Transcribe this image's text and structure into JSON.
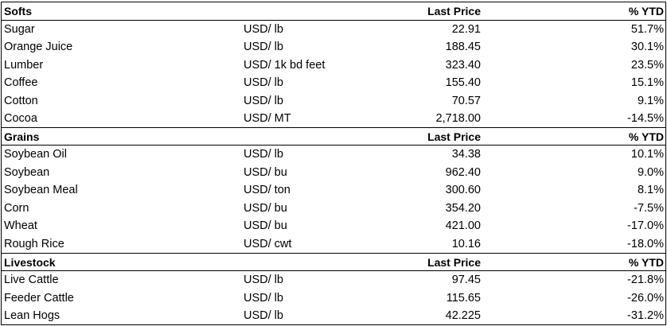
{
  "sections": [
    {
      "title": "Softs",
      "price_header": "Last Price",
      "ytd_header": "% YTD",
      "rows": [
        {
          "name": "Sugar",
          "unit": "USD/ lb",
          "price": "22.91",
          "ytd": "51.7%"
        },
        {
          "name": "Orange Juice",
          "unit": "USD/ lb",
          "price": "188.45",
          "ytd": "30.1%"
        },
        {
          "name": "Lumber",
          "unit": "USD/ 1k bd feet",
          "price": "323.40",
          "ytd": "23.5%"
        },
        {
          "name": "Coffee",
          "unit": "USD/ lb",
          "price": "155.40",
          "ytd": "15.1%"
        },
        {
          "name": "Cotton",
          "unit": "USD/ lb",
          "price": "70.57",
          "ytd": "9.1%"
        },
        {
          "name": "Cocoa",
          "unit": "USD/ MT",
          "price": "2,718.00",
          "ytd": "-14.5%"
        }
      ]
    },
    {
      "title": "Grains",
      "price_header": "Last Price",
      "ytd_header": "% YTD",
      "rows": [
        {
          "name": "Soybean Oil",
          "unit": "USD/ lb",
          "price": "34.38",
          "ytd": "10.1%"
        },
        {
          "name": "Soybean",
          "unit": "USD/ bu",
          "price": "962.40",
          "ytd": "9.0%"
        },
        {
          "name": "Soybean Meal",
          "unit": "USD/ ton",
          "price": "300.60",
          "ytd": "8.1%"
        },
        {
          "name": "Corn",
          "unit": "USD/ bu",
          "price": "354.20",
          "ytd": "-7.5%"
        },
        {
          "name": "Wheat",
          "unit": "USD/ bu",
          "price": "421.00",
          "ytd": "-17.0%"
        },
        {
          "name": "Rough Rice",
          "unit": "USD/ cwt",
          "price": "10.16",
          "ytd": "-18.0%"
        }
      ]
    },
    {
      "title": "Livestock",
      "price_header": "Last Price",
      "ytd_header": "% YTD",
      "rows": [
        {
          "name": "Live Cattle",
          "unit": "USD/ lb",
          "price": "97.45",
          "ytd": "-21.8%"
        },
        {
          "name": "Feeder Cattle",
          "unit": "USD/ lb",
          "price": "115.65",
          "ytd": "-26.0%"
        },
        {
          "name": "Lean Hogs",
          "unit": "USD/ lb",
          "price": "42.225",
          "ytd": "-31.2%"
        }
      ]
    }
  ]
}
